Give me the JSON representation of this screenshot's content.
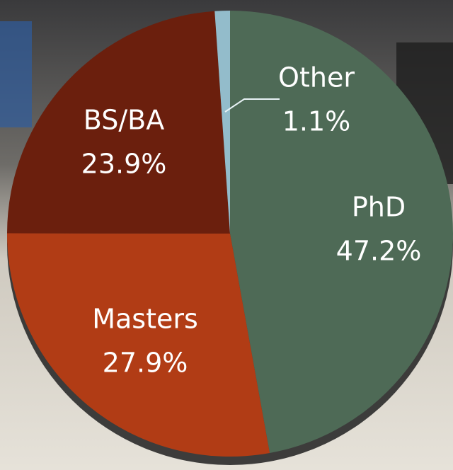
{
  "chart_data": {
    "type": "pie",
    "categories": [
      "PhD",
      "Masters",
      "BS/BA",
      "Other"
    ],
    "values": [
      47.2,
      27.9,
      23.9,
      1.1
    ],
    "value_labels": [
      "47.2%",
      "27.9%",
      "23.9%",
      "1.1%"
    ],
    "colors": [
      "#4e6a56",
      "#b13c15",
      "#6b1f0d",
      "#93bccb"
    ]
  }
}
